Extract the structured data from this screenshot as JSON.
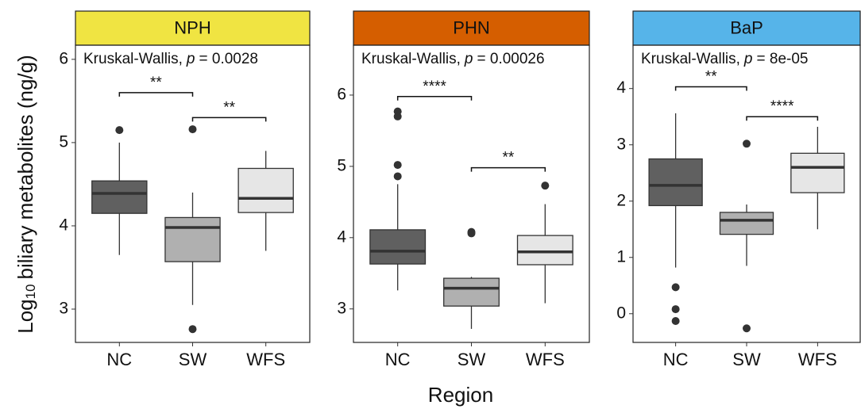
{
  "x_label": "Region",
  "y_label": {
    "prefix": "Log",
    "sub": "10",
    "rest": "biliary metabolites (ng/g)"
  },
  "chart_data": [
    {
      "type": "box",
      "title": "NPH",
      "title_color": "#f0e442",
      "annotation": {
        "method": "Kruskal-Wallis,",
        "p": "p",
        "value": "= 0.0028"
      },
      "categories": [
        "NC",
        "SW",
        "WFS"
      ],
      "colors": [
        "#606060",
        "#b0b0b0",
        "#e6e6e6"
      ],
      "boxes": [
        {
          "min": 3.65,
          "q1": 4.15,
          "median": 4.39,
          "q3": 4.54,
          "max": 5.0,
          "outliers": [
            5.15
          ]
        },
        {
          "min": 3.05,
          "q1": 3.57,
          "median": 3.98,
          "q3": 4.1,
          "max": 4.4,
          "outliers": [
            5.16,
            2.76
          ]
        },
        {
          "min": 3.7,
          "q1": 4.16,
          "median": 4.33,
          "q3": 4.69,
          "max": 4.9,
          "outliers": []
        }
      ],
      "comparisons": [
        {
          "between": [
            "NC",
            "SW"
          ],
          "label": "**",
          "y": 5.6
        },
        {
          "between": [
            "SW",
            "WFS"
          ],
          "label": "**",
          "y": 5.3
        }
      ],
      "ylim": [
        2.6,
        6.17
      ],
      "yticks": [
        3,
        4,
        5,
        6
      ]
    },
    {
      "type": "box",
      "title": "PHN",
      "title_color": "#d55e00",
      "annotation": {
        "method": "Kruskal-Wallis,",
        "p": "p",
        "value": "= 0.00026"
      },
      "categories": [
        "NC",
        "SW",
        "WFS"
      ],
      "colors": [
        "#606060",
        "#b0b0b0",
        "#e6e6e6"
      ],
      "boxes": [
        {
          "min": 3.26,
          "q1": 3.63,
          "median": 3.81,
          "q3": 4.11,
          "max": 4.75,
          "outliers": [
            5.77,
            5.7,
            5.02,
            4.86
          ]
        },
        {
          "min": 2.72,
          "q1": 3.04,
          "median": 3.29,
          "q3": 3.43,
          "max": 3.45,
          "outliers": [
            4.08,
            4.06
          ]
        },
        {
          "min": 3.08,
          "q1": 3.62,
          "median": 3.8,
          "q3": 4.03,
          "max": 4.47,
          "outliers": [
            4.73
          ]
        }
      ],
      "comparisons": [
        {
          "between": [
            "NC",
            "SW"
          ],
          "label": "****",
          "y": 5.98
        },
        {
          "between": [
            "SW",
            "WFS"
          ],
          "label": "**",
          "y": 4.98
        }
      ],
      "ylim": [
        2.53,
        6.7
      ],
      "yticks": [
        3,
        4,
        5,
        6
      ]
    },
    {
      "type": "box",
      "title": "BaP",
      "title_color": "#56b4e9",
      "annotation": {
        "method": "Kruskal-Wallis,",
        "p": "p",
        "value": "= 8e-05"
      },
      "categories": [
        "NC",
        "SW",
        "WFS"
      ],
      "colors": [
        "#606060",
        "#b0b0b0",
        "#e6e6e6"
      ],
      "boxes": [
        {
          "min": 0.82,
          "q1": 1.92,
          "median": 2.28,
          "q3": 2.75,
          "max": 3.56,
          "outliers": [
            0.47,
            0.08,
            -0.13
          ]
        },
        {
          "min": 0.85,
          "q1": 1.41,
          "median": 1.66,
          "q3": 1.8,
          "max": 1.94,
          "outliers": [
            3.02,
            -0.26
          ]
        },
        {
          "min": 1.5,
          "q1": 2.15,
          "median": 2.6,
          "q3": 2.85,
          "max": 3.32,
          "outliers": []
        }
      ],
      "comparisons": [
        {
          "between": [
            "NC",
            "SW"
          ],
          "label": "**",
          "y": 4.03
        },
        {
          "between": [
            "SW",
            "WFS"
          ],
          "label": "****",
          "y": 3.5
        }
      ],
      "ylim": [
        -0.51,
        4.77
      ],
      "yticks": [
        0,
        1,
        2,
        3,
        4
      ]
    }
  ]
}
